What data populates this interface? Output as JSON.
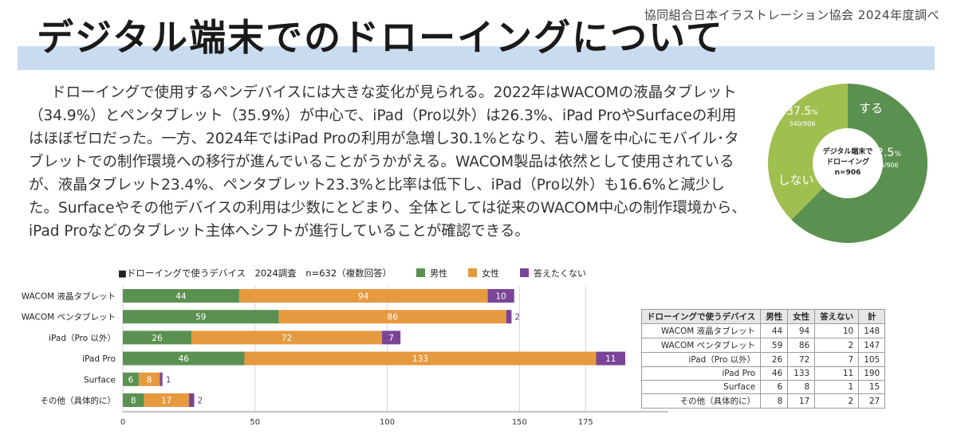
{
  "header": {
    "org": "協同組合日本イラストレーション協会 2024年度調べ",
    "title": "デジタル端末でのドローイングについて"
  },
  "body_text": "ドローイングで使用するペンデバイスには大きな変化が見られる。2022年はWACOMの液晶タブレット（34.9%）とペンタブレット（35.9%）が中心で、iPad（Pro以外）は26.3%、iPad ProやSurfaceの利用はほぼゼロだった。一方、2024年ではiPad Proの利用が急増し30.1%となり、若い層を中心にモバイル･タブレットでの制作環境への移行が進んでいることがうかがえる。WACOM製品は依然として使用されているが、液晶タブレット23.4%、ペンタブレット23.3%と比率は低下し、iPad（Pro以外）も16.6%と減少した。Surfaceやその他デバイスの利用は少数にとどまり、全体としては従来のWACOM中心の制作環境から、iPad Proなどのタブレット主体へシフトが進行していることが確認できる。",
  "colors": {
    "male": "#5b9150",
    "female": "#e69a3f",
    "noanswer": "#7a4596",
    "donut_yes": "#5b9150",
    "donut_no": "#9fbf4f",
    "title_band": "#c9dcef"
  },
  "chart_data": [
    {
      "type": "pie",
      "center_label": [
        "デジタル端末で",
        "ドローイング",
        "n=906"
      ],
      "slices": [
        {
          "label": "する",
          "value": 566,
          "percent": "62.5",
          "fraction": "566/906",
          "color": "#5b9150"
        },
        {
          "label": "しない",
          "value": 340,
          "percent": "37.5",
          "fraction": "340/906",
          "color": "#9fbf4f"
        }
      ]
    },
    {
      "type": "bar",
      "orientation": "horizontal",
      "stacked": true,
      "title": "■ドローイングで使うデバイス　2024調査　n=632（複数回答）",
      "categories": [
        "WACOM 液晶タブレット",
        "WACOM ペンタブレット",
        "iPad（Pro 以外）",
        "iPad Pro",
        "Surface",
        "その他（具体的に）"
      ],
      "series": [
        {
          "name": "男性",
          "color": "#5b9150",
          "values": [
            44,
            59,
            26,
            46,
            6,
            8
          ]
        },
        {
          "name": "女性",
          "color": "#e69a3f",
          "values": [
            94,
            86,
            72,
            133,
            8,
            17
          ]
        },
        {
          "name": "答えたくない",
          "color": "#7a4596",
          "values": [
            10,
            2,
            7,
            11,
            1,
            2
          ]
        }
      ],
      "xticks": [
        0,
        50,
        100,
        150,
        175
      ],
      "xlim": [
        0,
        190
      ],
      "legend": "top"
    },
    {
      "type": "table",
      "columns": [
        "ドローイングで使うデバイス",
        "男性",
        "女性",
        "答えない",
        "計"
      ],
      "rows": [
        [
          "WACOM 液晶タブレット",
          "44",
          "94",
          "10",
          "148"
        ],
        [
          "WACOM ペンタブレット",
          "59",
          "86",
          "2",
          "147"
        ],
        [
          "iPad（Pro 以外）",
          "26",
          "72",
          "7",
          "105"
        ],
        [
          "iPad Pro",
          "46",
          "133",
          "11",
          "190"
        ],
        [
          "Surface",
          "6",
          "8",
          "1",
          "15"
        ],
        [
          "その他（具体的に）",
          "8",
          "17",
          "2",
          "27"
        ]
      ]
    }
  ]
}
